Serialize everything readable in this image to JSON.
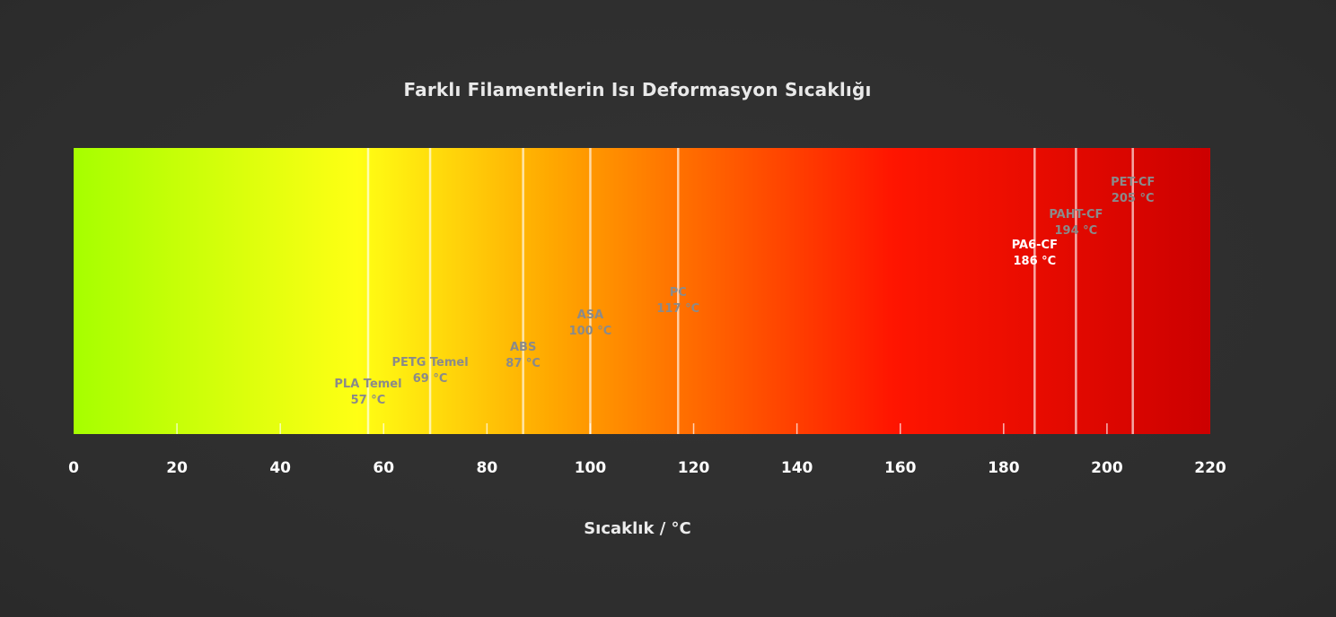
{
  "chart_data": {
    "type": "bar",
    "title": "Farklı Filamentlerin Isı Deformasyon Sıcaklığı",
    "xlabel": "Sıcaklık / °C",
    "xlim": [
      0,
      220
    ],
    "x_ticks": [
      0,
      20,
      40,
      60,
      80,
      100,
      120,
      140,
      160,
      180,
      200,
      220
    ],
    "gradient_colors": [
      "#a6ff00",
      "#ffff14",
      "#ffa800",
      "#ff1500",
      "#cc0000"
    ],
    "markers": [
      {
        "name": "PLA Temel",
        "value": 57,
        "label": "57 °C"
      },
      {
        "name": "PETG Temel",
        "value": 69,
        "label": "69 °C"
      },
      {
        "name": "ABS",
        "value": 87,
        "label": "87 °C"
      },
      {
        "name": "ASA",
        "value": 100,
        "label": "100 °C"
      },
      {
        "name": "PC",
        "value": 117,
        "label": "117 °C"
      },
      {
        "name": "PA6-CF",
        "value": 186,
        "label": "186 °C"
      },
      {
        "name": "PAHT-CF",
        "value": 194,
        "label": "194 °C"
      },
      {
        "name": "PET-CF",
        "value": 205,
        "label": "205 °C"
      }
    ],
    "colors": {
      "background": "#2f2f2f",
      "marker_line": "#ffffff",
      "marker_label": "#8a8a8a",
      "marker_label_highlight": "#ffffff",
      "tick_label": "#ffffff",
      "title": "#e9e9e9"
    },
    "highlighted_marker": "PA6-CF"
  }
}
